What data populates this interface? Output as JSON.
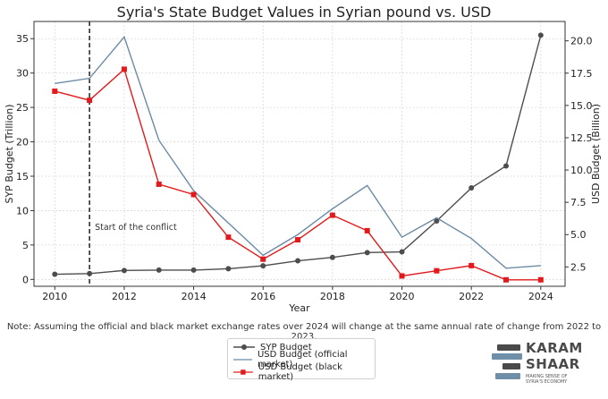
{
  "title": "Syria's State Budget Values in Syrian pound vs. USD",
  "note": "Note: Assuming the official and black market exchange rates over 2024 will change at the same annual rate of change from 2022 to 2023.",
  "logo": {
    "line1": "KARAM",
    "line2": "SHAAR",
    "tagline": "MAKING SENSE OF SYRIA'S ECONOMY"
  },
  "chart_data": {
    "type": "line",
    "xlabel": "Year",
    "ylabel_left": "SYP Budget (Trillion)",
    "ylabel_right": "USD Budget (Billion)",
    "x": [
      2010,
      2011,
      2012,
      2013,
      2014,
      2015,
      2016,
      2017,
      2018,
      2019,
      2020,
      2021,
      2022,
      2023,
      2024
    ],
    "x_ticks": [
      2010,
      2012,
      2014,
      2016,
      2018,
      2020,
      2022,
      2024
    ],
    "y_left_lim": [
      -1,
      37.5
    ],
    "y_left_ticks": [
      0,
      5,
      10,
      15,
      20,
      25,
      30,
      35
    ],
    "y_right_lim": [
      1.0,
      21.5
    ],
    "y_right_ticks": [
      2.5,
      5.0,
      7.5,
      10.0,
      12.5,
      15.0,
      17.5,
      20.0
    ],
    "grid": true,
    "legend_placement": "bottom-center",
    "annotation": {
      "text": "Start of the conflict",
      "x": 2011
    },
    "series": [
      {
        "name": "SYP Budget",
        "axis": "left",
        "color": "#4d4d4d",
        "marker": "circle",
        "values": [
          0.75,
          0.85,
          1.3,
          1.35,
          1.35,
          1.55,
          1.98,
          2.7,
          3.2,
          3.9,
          4.0,
          8.5,
          13.3,
          16.5,
          35.5
        ]
      },
      {
        "name": "USD Budget (official market)",
        "axis": "right",
        "color": "#6b8aa5",
        "marker": "none",
        "values": [
          16.7,
          17.1,
          20.3,
          12.3,
          8.4,
          5.9,
          3.4,
          5.0,
          7.0,
          8.8,
          4.8,
          6.3,
          4.7,
          2.4,
          2.6
        ]
      },
      {
        "name": "USD Budget (black market)",
        "axis": "right",
        "color": "#e31a1c",
        "marker": "square",
        "values": [
          16.1,
          15.4,
          17.8,
          8.9,
          8.1,
          4.8,
          3.1,
          4.6,
          6.5,
          5.3,
          1.8,
          2.2,
          2.6,
          1.5,
          1.5
        ]
      }
    ]
  }
}
